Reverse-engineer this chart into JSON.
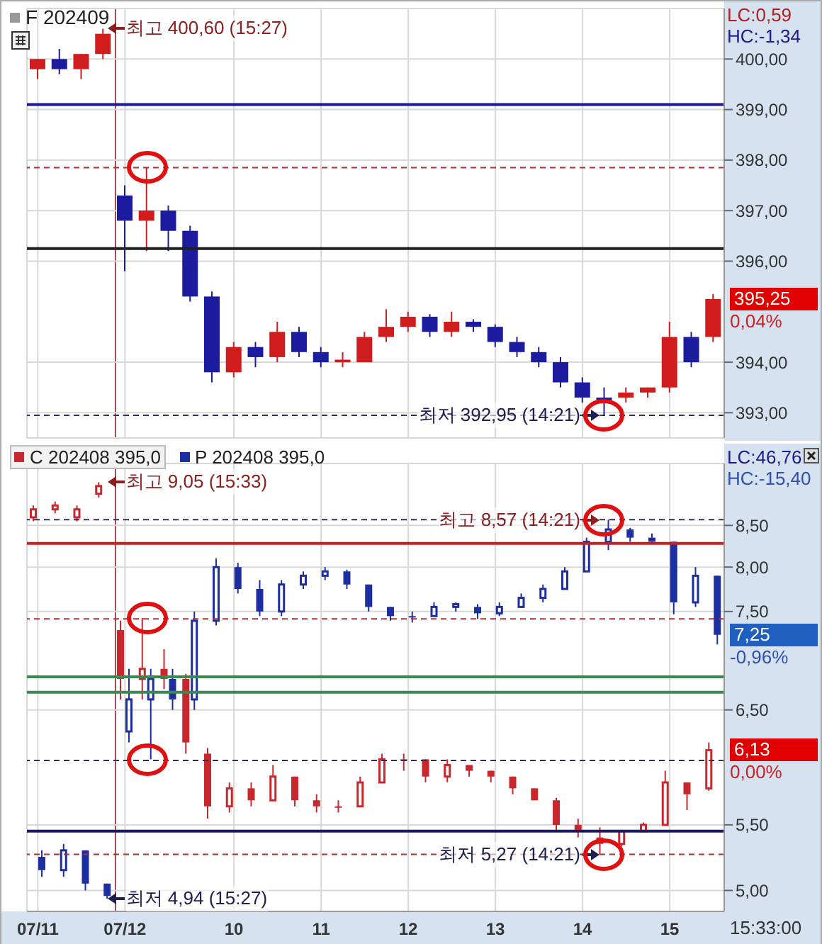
{
  "chart_data": [
    {
      "type": "candlestick",
      "title": "F 202409",
      "categories": [
        "07/11",
        null,
        null,
        null,
        "07/12",
        null,
        null,
        null,
        null,
        "10",
        null,
        null,
        null,
        "11",
        null,
        null,
        null,
        "12",
        null,
        null,
        null,
        "13",
        null,
        null,
        null,
        "14",
        null,
        null,
        null,
        "15",
        null,
        null
      ],
      "ohlc": [
        [
          399.8,
          400.0,
          399.6,
          400.0
        ],
        [
          400.0,
          400.2,
          399.7,
          399.8
        ],
        [
          399.8,
          400.1,
          399.6,
          400.1
        ],
        [
          400.1,
          400.6,
          400.0,
          400.5
        ],
        [
          397.3,
          397.5,
          395.8,
          396.8
        ],
        [
          396.8,
          397.85,
          396.2,
          397.0
        ],
        [
          397.0,
          397.1,
          396.2,
          396.6
        ],
        [
          396.6,
          396.7,
          395.2,
          395.3
        ],
        [
          395.3,
          395.4,
          393.6,
          393.8
        ],
        [
          393.8,
          394.4,
          393.7,
          394.3
        ],
        [
          394.3,
          394.4,
          393.9,
          394.1
        ],
        [
          394.1,
          394.8,
          394.0,
          394.6
        ],
        [
          394.6,
          394.7,
          394.1,
          394.2
        ],
        [
          394.2,
          394.3,
          393.9,
          394.0
        ],
        [
          394.0,
          394.2,
          393.9,
          394.05
        ],
        [
          394.0,
          394.6,
          394.0,
          394.5
        ],
        [
          394.5,
          395.05,
          394.4,
          394.7
        ],
        [
          394.7,
          395.0,
          394.6,
          394.9
        ],
        [
          394.9,
          394.95,
          394.5,
          394.6
        ],
        [
          394.6,
          395.0,
          394.5,
          394.8
        ],
        [
          394.8,
          394.85,
          394.6,
          394.7
        ],
        [
          394.7,
          394.75,
          394.3,
          394.4
        ],
        [
          394.4,
          394.5,
          394.1,
          394.2
        ],
        [
          394.2,
          394.3,
          393.9,
          394.0
        ],
        [
          394.0,
          394.1,
          393.5,
          393.6
        ],
        [
          393.6,
          393.7,
          393.2,
          393.3
        ],
        [
          393.3,
          393.5,
          392.95,
          393.25
        ],
        [
          393.3,
          393.5,
          393.2,
          393.4
        ],
        [
          393.4,
          393.5,
          393.3,
          393.5
        ],
        [
          393.5,
          394.8,
          393.4,
          394.5
        ],
        [
          394.5,
          394.6,
          393.9,
          394.0
        ],
        [
          394.5,
          395.35,
          394.4,
          395.25
        ]
      ],
      "colors": [
        "#d01c1c",
        "#1c1ca0",
        "#d01c1c",
        "#d01c1c",
        "#1c1ca0",
        "#d01c1c",
        "#1c1ca0",
        "#1c1ca0",
        "#1c1ca0",
        "#d01c1c",
        "#1c1ca0",
        "#d01c1c",
        "#1c1ca0",
        "#1c1ca0",
        "#d01c1c",
        "#d01c1c",
        "#d01c1c",
        "#d01c1c",
        "#1c1ca0",
        "#d01c1c",
        "#1c1ca0",
        "#1c1ca0",
        "#1c1ca0",
        "#1c1ca0",
        "#1c1ca0",
        "#1c1ca0",
        "#1c1ca0",
        "#d01c1c",
        "#d01c1c",
        "#d01c1c",
        "#1c1ca0",
        "#d01c1c"
      ],
      "ylim": [
        392.5,
        401
      ],
      "yticks": [
        {
          "value": 393,
          "label": "393,00"
        },
        {
          "value": 394,
          "label": "394,00"
        },
        {
          "value": 396,
          "label": "396,00"
        },
        {
          "value": 397,
          "label": "397,00"
        },
        {
          "value": 398,
          "label": "398,00"
        },
        {
          "value": 399,
          "label": "399,00"
        },
        {
          "value": 400,
          "label": "400,00"
        }
      ],
      "grid": true,
      "tick_labels": "y",
      "ref_lines": [
        {
          "axis": "y",
          "value": 399.1,
          "color": "#1a1a8c",
          "line_style": "solid"
        },
        {
          "axis": "y",
          "value": 396.25,
          "color": "#202020",
          "line_style": "solid"
        },
        {
          "axis": "y",
          "value": 397.85,
          "color": "#b03030",
          "line_style": "dashed"
        },
        {
          "axis": "y",
          "value": 392.95,
          "color": "#303060",
          "line_style": "dashed"
        },
        {
          "axis": "x",
          "value": "07/12",
          "color": "#a05050",
          "line_style": "solid"
        }
      ],
      "annotations": [
        "최고 400,60 (15:27)",
        "최저 392,95 (14:21)",
        "LC:0,59",
        "HC:-1,34",
        "395,25",
        "0,04%"
      ]
    },
    {
      "type": "candlestick",
      "categories": [
        "07/11",
        null,
        null,
        null,
        "07/12",
        null,
        null,
        null,
        null,
        "10",
        null,
        null,
        null,
        "11",
        null,
        null,
        null,
        "12",
        null,
        null,
        null,
        "13",
        null,
        null,
        null,
        "14",
        null,
        null,
        null,
        "15",
        null,
        null
      ],
      "series": [
        {
          "name": "C 202408 395,0",
          "color": "#c8282d",
          "ohlc": [
            [
              8.6,
              8.75,
              8.55,
              8.7
            ],
            [
              8.7,
              8.8,
              8.65,
              8.75
            ],
            [
              8.6,
              8.75,
              8.55,
              8.7
            ],
            [
              8.9,
              9.05,
              8.85,
              9.0
            ],
            [
              7.3,
              7.4,
              6.6,
              6.8
            ],
            [
              6.8,
              7.43,
              6.6,
              6.9
            ],
            [
              6.9,
              7.1,
              6.7,
              6.8
            ],
            [
              6.8,
              6.85,
              6.1,
              6.2
            ],
            [
              6.1,
              6.15,
              5.55,
              5.65
            ],
            [
              5.65,
              5.85,
              5.6,
              5.8
            ],
            [
              5.8,
              5.85,
              5.65,
              5.7
            ],
            [
              5.7,
              6.0,
              5.7,
              5.9
            ],
            [
              5.9,
              5.9,
              5.65,
              5.7
            ],
            [
              5.7,
              5.75,
              5.6,
              5.65
            ],
            [
              5.65,
              5.7,
              5.6,
              5.65
            ],
            [
              5.65,
              5.9,
              5.65,
              5.85
            ],
            [
              5.85,
              6.1,
              5.85,
              6.05
            ],
            [
              6.05,
              6.1,
              5.95,
              6.05
            ],
            [
              6.05,
              6.05,
              5.85,
              5.9
            ],
            [
              5.9,
              6.05,
              5.85,
              6.0
            ],
            [
              6.0,
              6.0,
              5.9,
              5.95
            ],
            [
              5.95,
              5.95,
              5.85,
              5.9
            ],
            [
              5.9,
              5.9,
              5.75,
              5.8
            ],
            [
              5.8,
              5.8,
              5.7,
              5.7
            ],
            [
              5.7,
              5.72,
              5.45,
              5.5
            ],
            [
              5.5,
              5.55,
              5.4,
              5.45
            ],
            [
              5.4,
              5.48,
              5.27,
              5.35
            ],
            [
              5.35,
              5.45,
              5.33,
              5.45
            ],
            [
              5.45,
              5.52,
              5.45,
              5.5
            ],
            [
              5.5,
              5.95,
              5.5,
              5.85
            ],
            [
              5.85,
              5.85,
              5.62,
              5.75
            ],
            [
              5.8,
              6.2,
              5.78,
              6.13
            ]
          ]
        },
        {
          "name": "P 202408 395,0",
          "color": "#1c2ea0",
          "ohlc": [
            [
              5.25,
              5.3,
              5.1,
              5.15
            ],
            [
              5.15,
              5.35,
              5.1,
              5.3
            ],
            [
              5.3,
              5.3,
              5.0,
              5.05
            ],
            [
              5.05,
              5.05,
              4.94,
              4.96
            ],
            [
              6.3,
              6.9,
              6.2,
              6.6
            ],
            [
              6.6,
              6.9,
              6.05,
              6.8
            ],
            [
              6.8,
              6.9,
              6.5,
              6.6
            ],
            [
              6.6,
              7.5,
              6.5,
              7.4
            ],
            [
              7.4,
              8.1,
              7.35,
              8.0
            ],
            [
              8.0,
              8.05,
              7.7,
              7.75
            ],
            [
              7.75,
              7.85,
              7.45,
              7.5
            ],
            [
              7.5,
              7.85,
              7.45,
              7.8
            ],
            [
              7.8,
              7.95,
              7.75,
              7.9
            ],
            [
              7.9,
              8.0,
              7.85,
              7.95
            ],
            [
              7.95,
              7.97,
              7.75,
              7.8
            ],
            [
              7.8,
              7.8,
              7.5,
              7.55
            ],
            [
              7.55,
              7.55,
              7.4,
              7.45
            ],
            [
              7.45,
              7.5,
              7.38,
              7.45
            ],
            [
              7.45,
              7.6,
              7.45,
              7.55
            ],
            [
              7.55,
              7.6,
              7.5,
              7.58
            ],
            [
              7.55,
              7.58,
              7.42,
              7.48
            ],
            [
              7.48,
              7.6,
              7.45,
              7.55
            ],
            [
              7.55,
              7.7,
              7.55,
              7.65
            ],
            [
              7.65,
              7.8,
              7.6,
              7.75
            ],
            [
              7.75,
              8.0,
              7.75,
              7.95
            ],
            [
              7.95,
              8.35,
              7.95,
              8.3
            ],
            [
              8.3,
              8.57,
              8.2,
              8.45
            ],
            [
              8.45,
              8.47,
              8.3,
              8.35
            ],
            [
              8.35,
              8.4,
              8.28,
              8.3
            ],
            [
              8.3,
              8.3,
              7.47,
              7.6
            ],
            [
              7.6,
              8.0,
              7.55,
              7.9
            ],
            [
              7.9,
              7.9,
              7.15,
              7.25
            ]
          ]
        }
      ],
      "log": true,
      "ylim": [
        4.85,
        9.3
      ],
      "yticks": [
        {
          "value": 5,
          "label": "5,00"
        },
        {
          "value": 5.5,
          "label": "5,50"
        },
        {
          "value": 6.5,
          "label": "6,50"
        },
        {
          "value": 7.5,
          "label": "7,50"
        },
        {
          "value": 8,
          "label": "8,00"
        },
        {
          "value": 8.5,
          "label": "8,50"
        }
      ],
      "grid": true,
      "legend": "top left",
      "ref_lines": [
        {
          "axis": "y",
          "value": 8.57,
          "color": "#303050",
          "line_style": "dashed"
        },
        {
          "axis": "y",
          "value": 8.28,
          "color": "#c82020",
          "line_style": "solid"
        },
        {
          "axis": "y",
          "value": 7.42,
          "color": "#b03030",
          "line_style": "dashed"
        },
        {
          "axis": "y",
          "value": 6.82,
          "color": "#3a8a50",
          "line_style": "solid"
        },
        {
          "axis": "y",
          "value": 6.67,
          "color": "#3a8a50",
          "line_style": "solid"
        },
        {
          "axis": "y",
          "value": 6.04,
          "color": "#303050",
          "line_style": "dashed"
        },
        {
          "axis": "y",
          "value": 5.45,
          "color": "#1a1a6c",
          "line_style": "solid"
        },
        {
          "axis": "y",
          "value": 5.27,
          "color": "#b03030",
          "line_style": "dashed"
        },
        {
          "axis": "x",
          "value": "07/12",
          "color": "#a05050",
          "line_style": "solid"
        }
      ],
      "annotations": [
        "최고 9,05 (15:33)",
        "최고 8,57 (14:21)",
        "최저 5,27 (14:21)",
        "최저 4,94 (15:27)",
        "LC:46,76",
        "HC:-15,40",
        "7,25",
        "-0,96%",
        "6,13",
        "0,00%",
        "15:33:00"
      ]
    }
  ]
}
